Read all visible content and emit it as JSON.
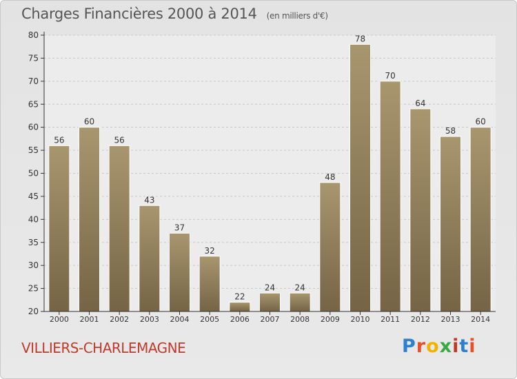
{
  "header": {
    "title": "Charges Financières 2000 à 2014",
    "unit": "(en milliers d'€)"
  },
  "footer": {
    "commune": "VILLIERS-CHARLEMAGNE",
    "logo": "Proxiti",
    "logo_colors": [
      "#2f7fd1",
      "#e8502a",
      "#f0b400",
      "#3aa845",
      "#c0392b",
      "#2f7fd1",
      "#e8502a"
    ]
  },
  "colors": {
    "bar_top": "#a8966f",
    "bar_bottom": "#756445",
    "bar_edge": "#ffffff",
    "axis": "#333333",
    "grid": "#c8c8c8",
    "label": "#333333"
  },
  "chart_data": {
    "type": "bar",
    "title": "Charges Financières 2000 à 2014",
    "categories": [
      "2000",
      "2001",
      "2002",
      "2003",
      "2004",
      "2005",
      "2006",
      "2007",
      "2008",
      "2009",
      "2010",
      "2011",
      "2012",
      "2013",
      "2014"
    ],
    "values": [
      56,
      60,
      56,
      43,
      37,
      32,
      22,
      24,
      24,
      48,
      78,
      70,
      64,
      58,
      60
    ],
    "data_labels": [
      "56",
      "60",
      "56",
      "43",
      "37",
      "32",
      "22",
      "24",
      "24",
      "48",
      "78",
      "70",
      "64",
      "58",
      "60"
    ],
    "ylim": [
      20,
      80
    ],
    "yticks": [
      20,
      25,
      30,
      35,
      40,
      45,
      50,
      55,
      60,
      65,
      70,
      75,
      80
    ],
    "xlabel": "",
    "ylabel": "",
    "grid": true,
    "legend": "none"
  }
}
